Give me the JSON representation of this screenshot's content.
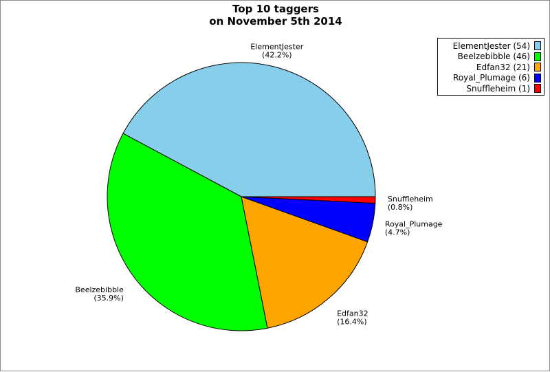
{
  "chart_data": {
    "type": "pie",
    "title_lines": [
      "Top 10 taggers",
      "on November 5th 2014"
    ],
    "slices": [
      {
        "name": "ElementJester",
        "count": 54,
        "legend": "ElementJester (54)",
        "percent_label": "(42.2%)",
        "color": "#87ceeb"
      },
      {
        "name": "Beelzebibble",
        "count": 46,
        "legend": "Beelzebibble (46)",
        "percent_label": "(35.9%)",
        "color": "#00ff00"
      },
      {
        "name": "Edfan32",
        "count": 21,
        "legend": "Edfan32 (21)",
        "percent_label": "(16.4%)",
        "color": "#ffa500"
      },
      {
        "name": "Royal_Plumage",
        "count": 6,
        "legend": "Royal_Plumage (6)",
        "percent_label": "(4.7%)",
        "color": "#0000ff"
      },
      {
        "name": "Snuffleheim",
        "count": 1,
        "legend": "Snuffleheim (1)",
        "percent_label": "(0.8%)",
        "color": "#ff0000"
      }
    ],
    "legend_position": "top-right",
    "start": "3 o'clock",
    "direction": "counterclockwise"
  }
}
